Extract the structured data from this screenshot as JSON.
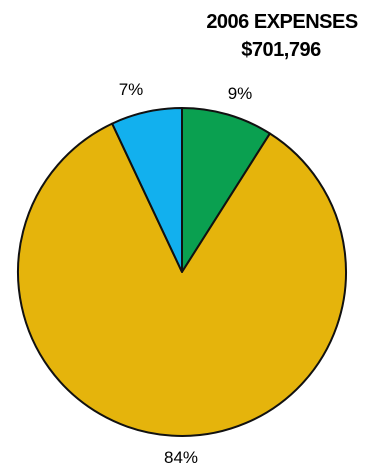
{
  "chart_data": {
    "type": "pie",
    "title": "2006 EXPENSES",
    "subtitle": "$701,796",
    "slices": [
      {
        "label": "9%",
        "value": 9,
        "color": "#0aa050"
      },
      {
        "label": "84%",
        "value": 84,
        "color": "#e5b40c"
      },
      {
        "label": "7%",
        "value": 7,
        "color": "#12b0ee"
      }
    ],
    "legend": "none"
  }
}
